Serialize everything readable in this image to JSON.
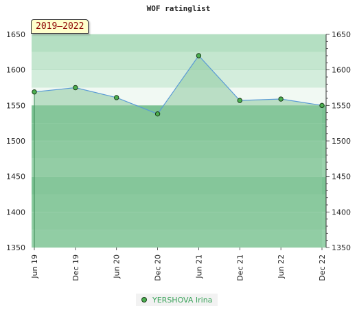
{
  "chart_data": {
    "type": "area",
    "title": "WOF ratinglist",
    "period_label": "2019–2022",
    "categories": [
      "Jun 19",
      "Dec 19",
      "Jun 20",
      "Dec 20",
      "Jun 21",
      "Dec 21",
      "Jun 22",
      "Dec 22"
    ],
    "series": [
      {
        "name": "YERSHOVA Irina",
        "values": [
          1569,
          1575,
          1561,
          1538,
          1620,
          1557,
          1559,
          1550
        ]
      }
    ],
    "ylim": [
      1350,
      1650
    ],
    "yticks": [
      1350,
      1400,
      1450,
      1500,
      1550,
      1600,
      1650
    ],
    "axes": "left-and-right",
    "grid": true,
    "legend_position": "bottom-center",
    "colors": {
      "area": "#8cc99e",
      "line": "#5b9bd5",
      "marker": "#4caf50"
    }
  }
}
